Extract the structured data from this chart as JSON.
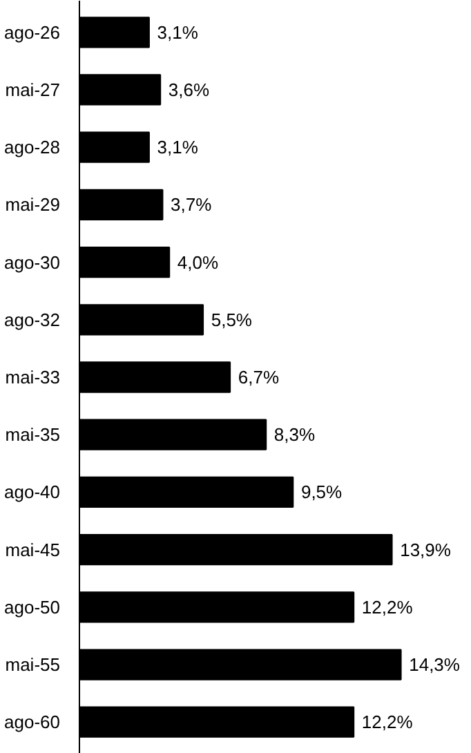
{
  "chart_data": {
    "type": "bar",
    "orientation": "horizontal",
    "categories": [
      "ago-26",
      "mai-27",
      "ago-28",
      "mai-29",
      "ago-30",
      "ago-32",
      "mai-33",
      "mai-35",
      "ago-40",
      "mai-45",
      "ago-50",
      "mai-55",
      "ago-60"
    ],
    "values": [
      3.1,
      3.6,
      3.1,
      3.7,
      4.0,
      5.5,
      6.7,
      8.3,
      9.5,
      13.9,
      12.2,
      14.3,
      12.2
    ],
    "color": "#000000",
    "value_labels": [
      "3,1%",
      "3,6%",
      "3,1%",
      "3,7%",
      "4,0%",
      "5,5%",
      "6,7%",
      "8,3%",
      "9,5%",
      "13,9%",
      "12,2%",
      "14,3%",
      "12,2%"
    ]
  }
}
